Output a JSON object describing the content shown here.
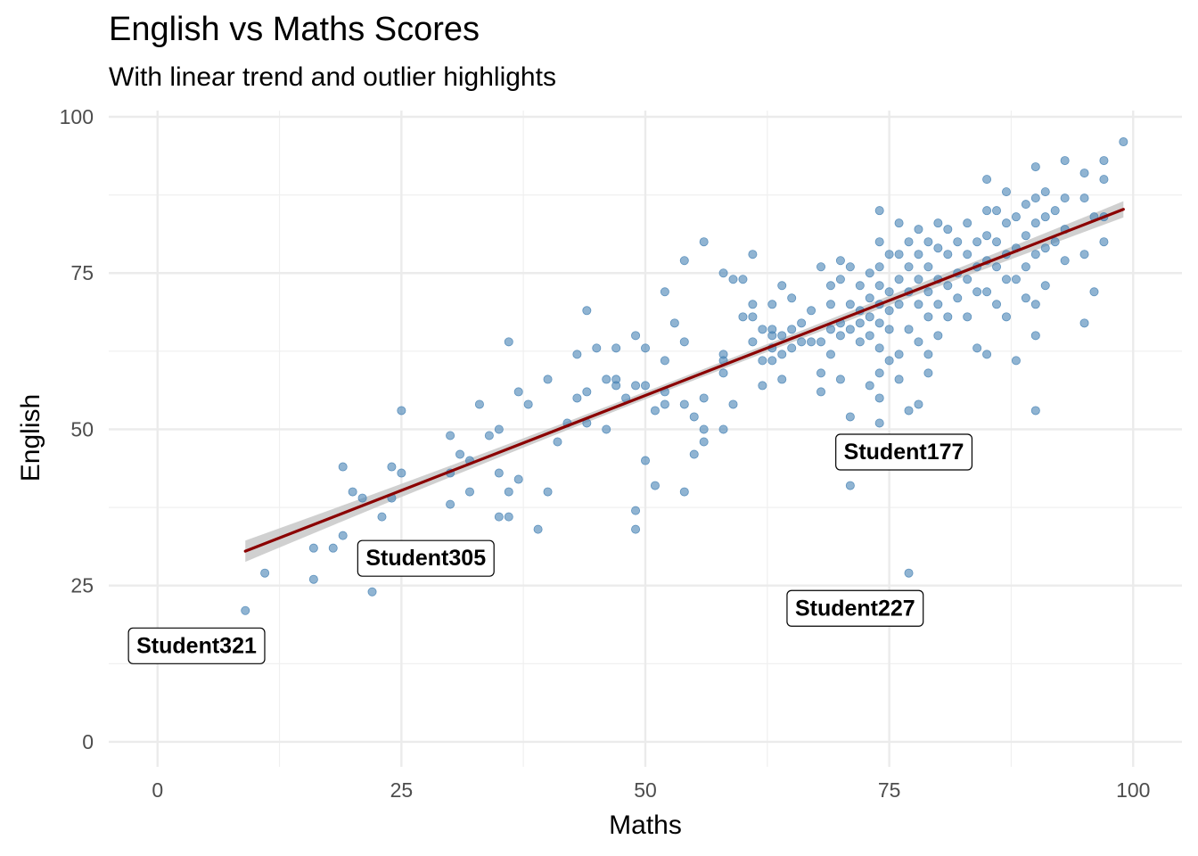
{
  "chart_data": {
    "type": "scatter",
    "title": "English vs Maths Scores",
    "subtitle": "With linear trend and outlier highlights",
    "xlabel": "Maths",
    "ylabel": "English",
    "xlim": [
      -5,
      105
    ],
    "ylim": [
      -4,
      101
    ],
    "xticks": [
      0,
      25,
      50,
      75,
      100
    ],
    "yticks": [
      0,
      25,
      50,
      75,
      100
    ],
    "grid": true,
    "point_color": "#4682B4",
    "trend_color": "#8B0000",
    "band_color": "#C8C8C8",
    "trend": {
      "x_start": 9,
      "x_end": 99,
      "y_start": 30.5,
      "y_end": 85.2,
      "se": [
        1.7,
        0.6,
        1.3
      ]
    },
    "points": [
      [
        9,
        21
      ],
      [
        11,
        27
      ],
      [
        16,
        31
      ],
      [
        16,
        26
      ],
      [
        18,
        31
      ],
      [
        19,
        44
      ],
      [
        19,
        33
      ],
      [
        20,
        40
      ],
      [
        21,
        39
      ],
      [
        22,
        24
      ],
      [
        23,
        36
      ],
      [
        24,
        44
      ],
      [
        24,
        39
      ],
      [
        25,
        53
      ],
      [
        25,
        43
      ],
      [
        30,
        49
      ],
      [
        30,
        43
      ],
      [
        30,
        38
      ],
      [
        31,
        46
      ],
      [
        32,
        45
      ],
      [
        32,
        40
      ],
      [
        33,
        54
      ],
      [
        34,
        49
      ],
      [
        35,
        50
      ],
      [
        35,
        43
      ],
      [
        35,
        36
      ],
      [
        36,
        64
      ],
      [
        36,
        40
      ],
      [
        36,
        36
      ],
      [
        37,
        56
      ],
      [
        37,
        42
      ],
      [
        38,
        54
      ],
      [
        39,
        34
      ],
      [
        40,
        58
      ],
      [
        40,
        40
      ],
      [
        41,
        48
      ],
      [
        42,
        51
      ],
      [
        43,
        62
      ],
      [
        43,
        55
      ],
      [
        44,
        69
      ],
      [
        44,
        56
      ],
      [
        44,
        51
      ],
      [
        45,
        63
      ],
      [
        46,
        58
      ],
      [
        46,
        50
      ],
      [
        47,
        63
      ],
      [
        47,
        58
      ],
      [
        47,
        57
      ],
      [
        48,
        55
      ],
      [
        49,
        65
      ],
      [
        49,
        57
      ],
      [
        49,
        37
      ],
      [
        49,
        34
      ],
      [
        50,
        63
      ],
      [
        50,
        57
      ],
      [
        50,
        45
      ],
      [
        51,
        53
      ],
      [
        51,
        41
      ],
      [
        52,
        72
      ],
      [
        52,
        61
      ],
      [
        52,
        56
      ],
      [
        52,
        54
      ],
      [
        53,
        67
      ],
      [
        54,
        77
      ],
      [
        54,
        64
      ],
      [
        54,
        54
      ],
      [
        54,
        40
      ],
      [
        55,
        52
      ],
      [
        55,
        46
      ],
      [
        56,
        80
      ],
      [
        56,
        55
      ],
      [
        56,
        50
      ],
      [
        56,
        48
      ],
      [
        58,
        75
      ],
      [
        58,
        62
      ],
      [
        58,
        61
      ],
      [
        58,
        59
      ],
      [
        58,
        50
      ],
      [
        59,
        74
      ],
      [
        59,
        54
      ],
      [
        60,
        74
      ],
      [
        60,
        68
      ],
      [
        61,
        78
      ],
      [
        61,
        70
      ],
      [
        61,
        68
      ],
      [
        61,
        64
      ],
      [
        62,
        66
      ],
      [
        62,
        61
      ],
      [
        62,
        57
      ],
      [
        63,
        70
      ],
      [
        63,
        66
      ],
      [
        63,
        65
      ],
      [
        63,
        63
      ],
      [
        63,
        61
      ],
      [
        64,
        73
      ],
      [
        64,
        65
      ],
      [
        64,
        62
      ],
      [
        64,
        58
      ],
      [
        65,
        71
      ],
      [
        65,
        66
      ],
      [
        65,
        63
      ],
      [
        66,
        67
      ],
      [
        66,
        64
      ],
      [
        67,
        69
      ],
      [
        67,
        64
      ],
      [
        68,
        76
      ],
      [
        68,
        64
      ],
      [
        68,
        59
      ],
      [
        68,
        56
      ],
      [
        69,
        73
      ],
      [
        69,
        70
      ],
      [
        69,
        66
      ],
      [
        69,
        62
      ],
      [
        70,
        77
      ],
      [
        70,
        74
      ],
      [
        70,
        67
      ],
      [
        70,
        65
      ],
      [
        70,
        58
      ],
      [
        71,
        76
      ],
      [
        71,
        70
      ],
      [
        71,
        66
      ],
      [
        71,
        52
      ],
      [
        71,
        41
      ],
      [
        72,
        73
      ],
      [
        72,
        69
      ],
      [
        72,
        67
      ],
      [
        72,
        64
      ],
      [
        73,
        75
      ],
      [
        73,
        71
      ],
      [
        73,
        68
      ],
      [
        73,
        65
      ],
      [
        73,
        57
      ],
      [
        74,
        85
      ],
      [
        74,
        80
      ],
      [
        74,
        76
      ],
      [
        74,
        73
      ],
      [
        74,
        70
      ],
      [
        74,
        67
      ],
      [
        74,
        63
      ],
      [
        74,
        59
      ],
      [
        74,
        55
      ],
      [
        74,
        51
      ],
      [
        75,
        78
      ],
      [
        75,
        72
      ],
      [
        75,
        69
      ],
      [
        75,
        66
      ],
      [
        75,
        61
      ],
      [
        76,
        83
      ],
      [
        76,
        78
      ],
      [
        76,
        74
      ],
      [
        76,
        70
      ],
      [
        76,
        62
      ],
      [
        76,
        58
      ],
      [
        77,
        80
      ],
      [
        77,
        76
      ],
      [
        77,
        72
      ],
      [
        77,
        66
      ],
      [
        77,
        53
      ],
      [
        77,
        27
      ],
      [
        78,
        82
      ],
      [
        78,
        78
      ],
      [
        78,
        74
      ],
      [
        78,
        70
      ],
      [
        78,
        64
      ],
      [
        78,
        54
      ],
      [
        79,
        80
      ],
      [
        79,
        76
      ],
      [
        79,
        72
      ],
      [
        79,
        68
      ],
      [
        79,
        62
      ],
      [
        79,
        59
      ],
      [
        80,
        83
      ],
      [
        80,
        79
      ],
      [
        80,
        74
      ],
      [
        80,
        70
      ],
      [
        80,
        65
      ],
      [
        81,
        82
      ],
      [
        81,
        78
      ],
      [
        81,
        73
      ],
      [
        81,
        68
      ],
      [
        82,
        80
      ],
      [
        82,
        75
      ],
      [
        82,
        71
      ],
      [
        83,
        83
      ],
      [
        83,
        78
      ],
      [
        83,
        74
      ],
      [
        83,
        68
      ],
      [
        84,
        80
      ],
      [
        84,
        76
      ],
      [
        84,
        72
      ],
      [
        84,
        63
      ],
      [
        85,
        90
      ],
      [
        85,
        85
      ],
      [
        85,
        81
      ],
      [
        85,
        77
      ],
      [
        85,
        72
      ],
      [
        85,
        62
      ],
      [
        86,
        85
      ],
      [
        86,
        80
      ],
      [
        86,
        76
      ],
      [
        86,
        70
      ],
      [
        87,
        88
      ],
      [
        87,
        83
      ],
      [
        87,
        78
      ],
      [
        87,
        74
      ],
      [
        87,
        68
      ],
      [
        88,
        84
      ],
      [
        88,
        79
      ],
      [
        88,
        74
      ],
      [
        88,
        61
      ],
      [
        89,
        86
      ],
      [
        89,
        81
      ],
      [
        89,
        76
      ],
      [
        89,
        71
      ],
      [
        90,
        92
      ],
      [
        90,
        87
      ],
      [
        90,
        83
      ],
      [
        90,
        78
      ],
      [
        90,
        70
      ],
      [
        90,
        65
      ],
      [
        90,
        53
      ],
      [
        91,
        88
      ],
      [
        91,
        84
      ],
      [
        91,
        79
      ],
      [
        91,
        73
      ],
      [
        92,
        85
      ],
      [
        92,
        80
      ],
      [
        93,
        93
      ],
      [
        93,
        87
      ],
      [
        93,
        82
      ],
      [
        93,
        77
      ],
      [
        95,
        91
      ],
      [
        95,
        87
      ],
      [
        95,
        78
      ],
      [
        95,
        67
      ],
      [
        96,
        84
      ],
      [
        96,
        72
      ],
      [
        97,
        93
      ],
      [
        97,
        90
      ],
      [
        97,
        84
      ],
      [
        97,
        80
      ],
      [
        99,
        96
      ]
    ],
    "annotations": [
      {
        "label": "Student321",
        "x": 4,
        "y": 15.5
      },
      {
        "label": "Student305",
        "x": 27.5,
        "y": 29.5
      },
      {
        "label": "Student227",
        "x": 71.5,
        "y": 21.5
      },
      {
        "label": "Student177",
        "x": 76.5,
        "y": 46.5
      }
    ]
  }
}
